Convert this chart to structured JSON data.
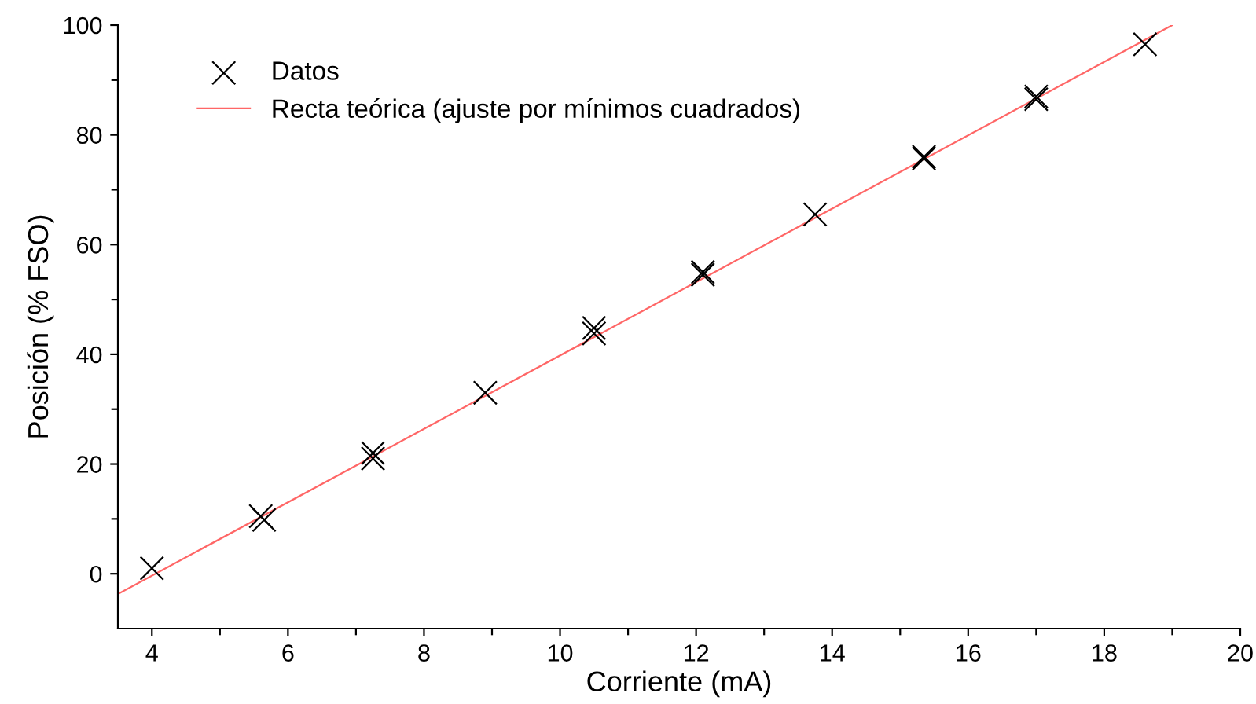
{
  "chart_data": {
    "type": "scatter",
    "xlabel": "Corriente (mA)",
    "ylabel": "Posición (% FSO)",
    "xlim": [
      3.5,
      20
    ],
    "ylim": [
      -10,
      100
    ],
    "xticks": [
      4,
      {
        "value": 5,
        "label": null
      },
      6,
      {
        "value": 7,
        "label": null
      },
      8,
      {
        "value": 9,
        "label": null
      },
      10,
      {
        "value": 11,
        "label": null
      },
      12,
      {
        "value": 13,
        "label": null
      },
      14,
      {
        "value": 15,
        "label": null
      },
      16,
      {
        "value": 17,
        "label": null
      },
      18,
      {
        "value": 19,
        "label": null
      },
      20
    ],
    "yticks": [
      0,
      {
        "value": 10,
        "label": null
      },
      20,
      {
        "value": 30,
        "label": null
      },
      40,
      {
        "value": 50,
        "label": null
      },
      60,
      {
        "value": 70,
        "label": null
      },
      80,
      {
        "value": 90,
        "label": null
      },
      100
    ],
    "grid": false,
    "legend": "top left",
    "series": [
      {
        "name": "Datos",
        "marker": "cross",
        "color": "#000000",
        "x": [
          4,
          5.6,
          5.65,
          7.25,
          7.25,
          8.9,
          10.5,
          10.5,
          12.1,
          12.1,
          13.75,
          15.35,
          15.35,
          17,
          17,
          18.6
        ],
        "values": [
          1,
          10.5,
          9.8,
          22,
          21,
          33,
          44.8,
          43.8,
          55,
          54.5,
          65.5,
          76,
          75.7,
          87,
          86.5,
          96.5
        ]
      },
      {
        "name": "Recta teórica (ajuste por mínimos cuadrados)",
        "type": "line",
        "line_style": "solid",
        "color": "#ff6666",
        "x": [
          3.5,
          19
        ],
        "values": [
          -3.7,
          100
        ]
      }
    ]
  }
}
